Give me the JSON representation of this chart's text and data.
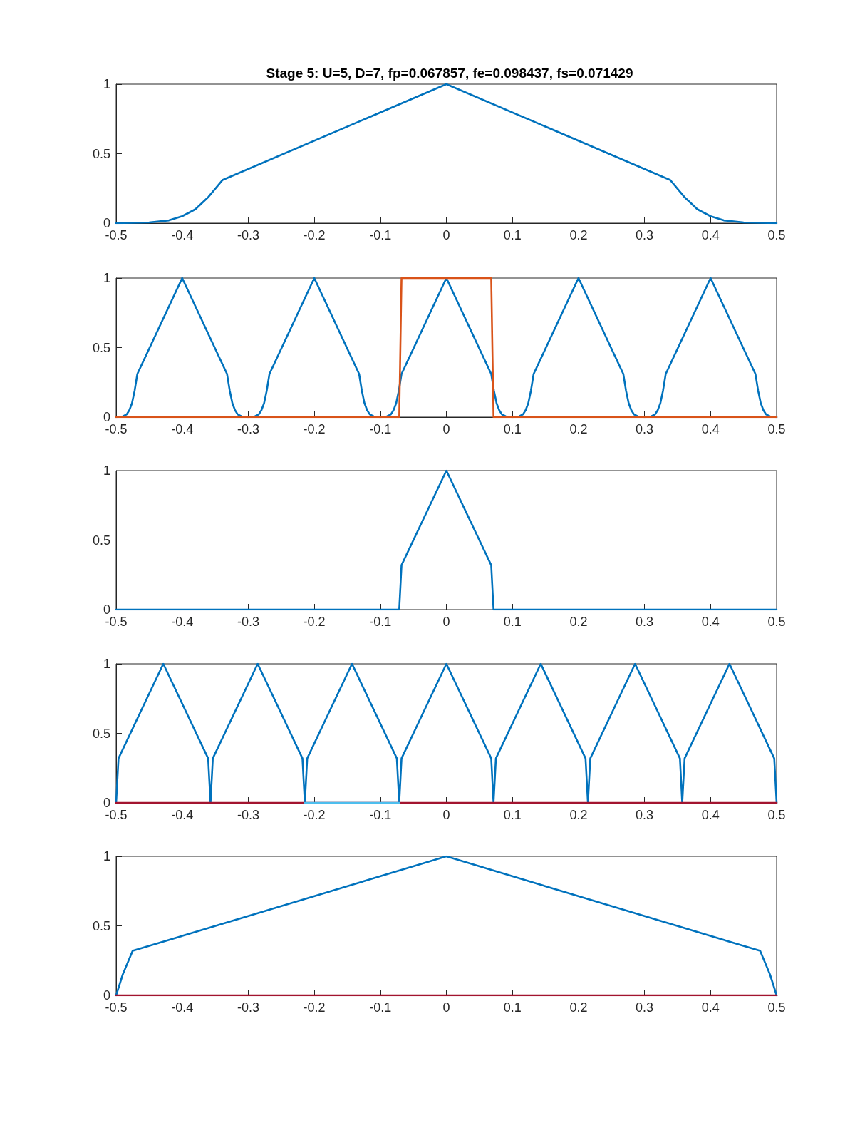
{
  "chart_data": [
    {
      "type": "line",
      "title": "Stage 5: U=5, D=7, fp=0.067857, fe=0.098437, fs=0.071429",
      "xlim": [
        -0.5,
        0.5
      ],
      "ylim": [
        0,
        1
      ],
      "xticks": [
        -0.5,
        -0.4,
        -0.3,
        -0.2,
        -0.1,
        0,
        0.1,
        0.2,
        0.3,
        0.4,
        0.5
      ],
      "yticks": [
        0,
        0.5,
        1
      ],
      "grid": false,
      "marker": "none",
      "line_style": "solid",
      "series": [
        {
          "color": "#0072bd",
          "x": [
            -0.5,
            -0.45,
            -0.42,
            -0.4,
            -0.38,
            -0.36,
            -0.339,
            0,
            0.339,
            0.36,
            0.38,
            0.4,
            0.42,
            0.45,
            0.5
          ],
          "values": [
            0,
            0.005,
            0.02,
            0.05,
            0.1,
            0.19,
            0.31,
            1,
            0.31,
            0.19,
            0.1,
            0.05,
            0.02,
            0.005,
            0
          ]
        }
      ]
    },
    {
      "type": "line",
      "xlim": [
        -0.5,
        0.5
      ],
      "ylim": [
        0,
        1
      ],
      "xticks": [
        -0.5,
        -0.4,
        -0.3,
        -0.2,
        -0.1,
        0,
        0.1,
        0.2,
        0.3,
        0.4,
        0.5
      ],
      "yticks": [
        0,
        0.5,
        1
      ],
      "grid": false,
      "marker": "none",
      "line_style": "solid",
      "series": [
        {
          "color": "#0072bd",
          "x": [
            -0.5,
            -0.49,
            -0.484,
            -0.48,
            -0.476,
            -0.472,
            -0.4679,
            -0.4,
            -0.3321,
            -0.328,
            -0.324,
            -0.32,
            -0.316,
            -0.31,
            -0.3,
            -0.29,
            -0.284,
            -0.28,
            -0.276,
            -0.272,
            -0.2679,
            -0.2,
            -0.1321,
            -0.128,
            -0.124,
            -0.12,
            -0.116,
            -0.11,
            -0.1,
            -0.09,
            -0.084,
            -0.08,
            -0.076,
            -0.072,
            -0.0679,
            0,
            0.0679,
            0.072,
            0.076,
            0.08,
            0.084,
            0.09,
            0.1,
            0.11,
            0.116,
            0.12,
            0.124,
            0.128,
            0.1321,
            0.2,
            0.2679,
            0.272,
            0.276,
            0.28,
            0.284,
            0.29,
            0.3,
            0.31,
            0.316,
            0.32,
            0.324,
            0.328,
            0.3321,
            0.4,
            0.4679,
            0.472,
            0.476,
            0.48,
            0.484,
            0.49,
            0.5
          ],
          "values": [
            0,
            0.005,
            0.02,
            0.05,
            0.1,
            0.19,
            0.31,
            1,
            0.31,
            0.19,
            0.1,
            0.05,
            0.02,
            0.005,
            0,
            0.005,
            0.02,
            0.05,
            0.1,
            0.19,
            0.31,
            1,
            0.31,
            0.19,
            0.1,
            0.05,
            0.02,
            0.005,
            0,
            0.005,
            0.02,
            0.05,
            0.1,
            0.19,
            0.31,
            1,
            0.31,
            0.19,
            0.1,
            0.05,
            0.02,
            0.005,
            0,
            0.005,
            0.02,
            0.05,
            0.1,
            0.19,
            0.31,
            1,
            0.31,
            0.19,
            0.1,
            0.05,
            0.02,
            0.005,
            0,
            0.005,
            0.02,
            0.05,
            0.1,
            0.19,
            0.31,
            1,
            0.31,
            0.19,
            0.1,
            0.05,
            0.02,
            0.005,
            0
          ]
        },
        {
          "color": "#d95319",
          "x": [
            -0.5,
            -0.0714,
            -0.0679,
            0.0679,
            0.0714,
            0.5
          ],
          "values": [
            0,
            0,
            1,
            1,
            0,
            0
          ]
        }
      ]
    },
    {
      "type": "line",
      "xlim": [
        -0.5,
        0.5
      ],
      "ylim": [
        0,
        1
      ],
      "xticks": [
        -0.5,
        -0.4,
        -0.3,
        -0.2,
        -0.1,
        0,
        0.1,
        0.2,
        0.3,
        0.4,
        0.5
      ],
      "yticks": [
        0,
        0.5,
        1
      ],
      "grid": false,
      "marker": "none",
      "line_style": "solid",
      "series": [
        {
          "color": "#0072bd",
          "x": [
            -0.5,
            -0.0714,
            -0.0679,
            0,
            0.0679,
            0.0714,
            0.5
          ],
          "values": [
            0,
            0,
            0.32,
            1,
            0.32,
            0,
            0
          ]
        }
      ]
    },
    {
      "type": "line",
      "xlim": [
        -0.5,
        0.5
      ],
      "ylim": [
        0,
        1
      ],
      "xticks": [
        -0.5,
        -0.4,
        -0.3,
        -0.2,
        -0.1,
        0,
        0.1,
        0.2,
        0.3,
        0.4,
        0.5
      ],
      "yticks": [
        0,
        0.5,
        1
      ],
      "grid": false,
      "marker": "none",
      "line_style": "solid",
      "series": [
        {
          "color": "#0072bd",
          "x": [
            -0.5,
            -0.4964,
            -0.4286,
            -0.3607,
            -0.3571,
            -0.3536,
            -0.2857,
            -0.2179,
            -0.2143,
            -0.2107,
            -0.1429,
            -0.075,
            -0.0714,
            -0.0679,
            0,
            0.0679,
            0.0714,
            0.075,
            0.1429,
            0.2107,
            0.2143,
            0.2179,
            0.2857,
            0.3536,
            0.3571,
            0.3607,
            0.4286,
            0.4964,
            0.5
          ],
          "values": [
            0,
            0.32,
            1,
            0.32,
            0,
            0.32,
            1,
            0.32,
            0,
            0.32,
            1,
            0.32,
            0,
            0.32,
            1,
            0.32,
            0,
            0.32,
            1,
            0.32,
            0,
            0.32,
            1,
            0.32,
            0,
            0.32,
            1,
            0.32,
            0
          ]
        },
        {
          "color": "#a2142f",
          "x": [
            -0.5,
            0.5
          ],
          "values": [
            0,
            0
          ]
        },
        {
          "color": "#4dbeee",
          "x": [
            -0.2143,
            -0.0714
          ],
          "values": [
            0,
            0
          ]
        }
      ]
    },
    {
      "type": "line",
      "xlim": [
        -0.5,
        0.5
      ],
      "ylim": [
        0,
        1
      ],
      "xticks": [
        -0.5,
        -0.4,
        -0.3,
        -0.2,
        -0.1,
        0,
        0.1,
        0.2,
        0.3,
        0.4,
        0.5
      ],
      "yticks": [
        0,
        0.5,
        1
      ],
      "grid": false,
      "marker": "none",
      "line_style": "solid",
      "series": [
        {
          "color": "#0072bd",
          "x": [
            -0.5,
            -0.49,
            -0.475,
            0,
            0.475,
            0.49,
            0.5
          ],
          "values": [
            0,
            0.15,
            0.32,
            1,
            0.32,
            0.15,
            0
          ]
        },
        {
          "color": "#a2142f",
          "x": [
            -0.5,
            0.5
          ],
          "values": [
            0,
            0
          ]
        }
      ]
    }
  ]
}
